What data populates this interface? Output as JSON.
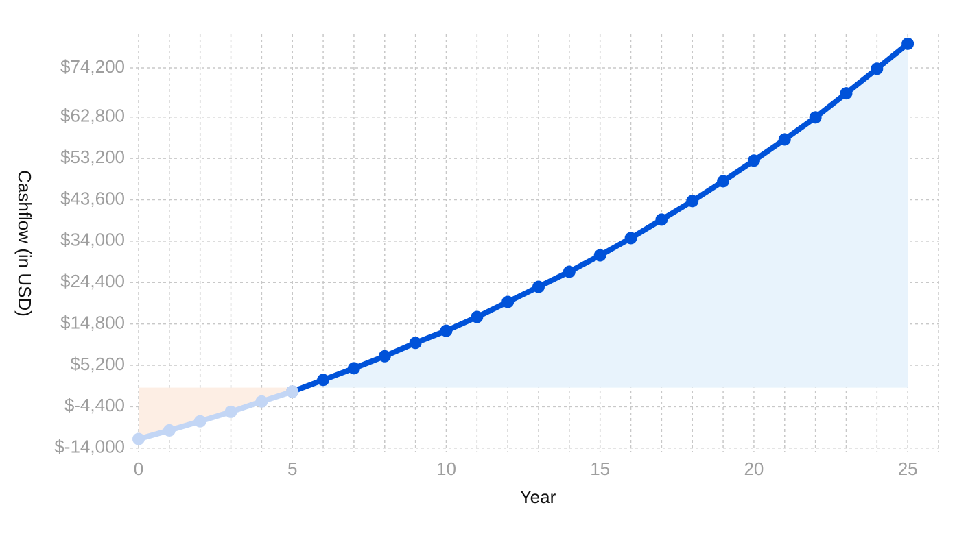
{
  "chart_data": {
    "type": "line",
    "x_label": "Year",
    "y_label": "Cashflow (in USD)",
    "x": [
      0,
      1,
      2,
      3,
      4,
      5,
      6,
      7,
      8,
      9,
      10,
      11,
      12,
      13,
      14,
      15,
      16,
      17,
      18,
      19,
      20,
      21,
      22,
      23,
      24,
      25
    ],
    "series": [
      {
        "color": "#c3d6f5",
        "area_color": "#fdeee4",
        "values": [
          -11900,
          -9900,
          -7800,
          -5600,
          -3200,
          -900,
          null,
          null,
          null,
          null,
          null,
          null,
          null,
          null,
          null,
          null,
          null,
          null,
          null,
          null,
          null,
          null,
          null,
          null,
          null,
          null
        ]
      },
      {
        "color": "#0052d9",
        "area_color": "#e8f3fc",
        "values": [
          null,
          null,
          null,
          null,
          null,
          -900,
          1800,
          4500,
          7300,
          10400,
          13200,
          16400,
          19900,
          23400,
          26900,
          30700,
          34700,
          39000,
          43300,
          47900,
          52700,
          57600,
          62700,
          68300,
          74000,
          79800
        ]
      }
    ],
    "xlim": [
      0,
      26
    ],
    "xticks": [
      0,
      5,
      10,
      15,
      20,
      25
    ],
    "x_grid_step": 1,
    "ylim": [
      -15000,
      82000
    ],
    "yticks": [
      {
        "value": -14000,
        "label": "$-14,000"
      },
      {
        "value": -4400,
        "label": "$-4,400"
      },
      {
        "value": 5200,
        "label": "$5,200"
      },
      {
        "value": 14800,
        "label": "$14,800"
      },
      {
        "value": 24400,
        "label": "$24,400"
      },
      {
        "value": 34000,
        "label": "$34,000"
      },
      {
        "value": 43600,
        "label": "$43,600"
      },
      {
        "value": 53200,
        "label": "$53,200"
      },
      {
        "value": 62800,
        "label": "$62,800"
      },
      {
        "value": 74200,
        "label": "$74,200"
      }
    ],
    "grid": true
  }
}
